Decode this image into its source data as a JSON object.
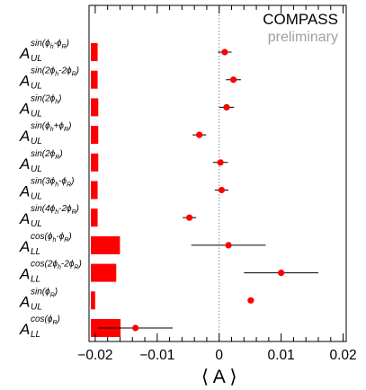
{
  "collaboration": "COMPASS",
  "status_label": "preliminary",
  "colors": {
    "marker": "#ff0000",
    "bar": "#ff0000",
    "zero_line": "#888888",
    "axis": "#000000"
  },
  "chart_data": {
    "type": "scatter",
    "title": "",
    "xlabel": "⟨ A ⟩",
    "xlim": [
      -0.021,
      0.0205
    ],
    "x_ticks": [
      -0.02,
      -0.01,
      0,
      0.01,
      0.02
    ],
    "x_tick_labels": [
      "−0.02",
      "−0.01",
      "0",
      "0.01",
      "0.02"
    ],
    "zero_line": true,
    "grid": false,
    "rows": [
      {
        "label_main": "A",
        "label_sub": "UL",
        "label_sup": "sin(ϕ_h-ϕ_R)",
        "sup_parts": [
          "sin(ϕ",
          "h",
          "-ϕ",
          "R",
          ")"
        ],
        "value": 0.0009,
        "err": 0.0011,
        "bar": 0.0011
      },
      {
        "label_main": "A",
        "label_sub": "UL",
        "label_sup": "sin(2ϕ_h-2ϕ_R)",
        "sup_parts": [
          "sin(2ϕ",
          "h",
          "-2ϕ",
          "R",
          ")"
        ],
        "value": 0.0023,
        "err": 0.0012,
        "bar": 0.0011
      },
      {
        "label_main": "A",
        "label_sub": "UL",
        "label_sup": "sin(2ϕ_h)",
        "sup_parts": [
          "sin(2ϕ",
          "h",
          ")"
        ],
        "value": 0.0012,
        "err": 0.0012,
        "bar": 0.0012
      },
      {
        "label_main": "A",
        "label_sub": "UL",
        "label_sup": "sin(ϕ_h+ϕ_R)",
        "sup_parts": [
          "sin(ϕ",
          "h",
          "+ϕ",
          "R",
          ")"
        ],
        "value": -0.0032,
        "err": 0.0011,
        "bar": 0.0012
      },
      {
        "label_main": "A",
        "label_sub": "UL",
        "label_sup": "sin(2ϕ_R)",
        "sup_parts": [
          "sin(2ϕ",
          "R",
          ")"
        ],
        "value": 0.0002,
        "err": 0.0012,
        "bar": 0.0012
      },
      {
        "label_main": "A",
        "label_sub": "UL",
        "label_sup": "sin(3ϕ_h-ϕ_R)",
        "sup_parts": [
          "sin(3ϕ",
          "h",
          "-ϕ",
          "R",
          ")"
        ],
        "value": 0.0004,
        "err": 0.0011,
        "bar": 0.0011
      },
      {
        "label_main": "A",
        "label_sub": "UL",
        "label_sup": "sin(4ϕ_h-2ϕ_R)",
        "sup_parts": [
          "sin(4ϕ",
          "h",
          "-2ϕ",
          "R",
          ")"
        ],
        "value": -0.0048,
        "err": 0.0011,
        "bar": 0.0011
      },
      {
        "label_main": "A",
        "label_sub": "LL",
        "label_sup": "cos(ϕ_h-ϕ_R)",
        "sup_parts": [
          "cos(ϕ",
          "h",
          "-ϕ",
          "R",
          ")"
        ],
        "value": 0.0015,
        "err": 0.006,
        "bar": 0.0047
      },
      {
        "label_main": "A",
        "label_sub": "LL",
        "label_sup": "cos(2ϕ_h-2ϕ_R)",
        "sup_parts": [
          "cos(2ϕ",
          "h",
          "-2ϕ",
          "R",
          ")"
        ],
        "value": 0.01,
        "err": 0.006,
        "bar": 0.0041
      },
      {
        "label_main": "A",
        "label_sub": "UL",
        "label_sup": "sin(ϕ_R)",
        "sup_parts": [
          "sin(ϕ",
          "R",
          ")"
        ],
        "value": 0.0051,
        "err": 0.0005,
        "bar": 0.0007
      },
      {
        "label_main": "A",
        "label_sub": "LL",
        "label_sup": "cos(ϕ_R)",
        "sup_parts": [
          "cos(ϕ",
          "R",
          ")"
        ],
        "value": -0.0135,
        "err": 0.006,
        "bar": 0.0048
      }
    ]
  }
}
